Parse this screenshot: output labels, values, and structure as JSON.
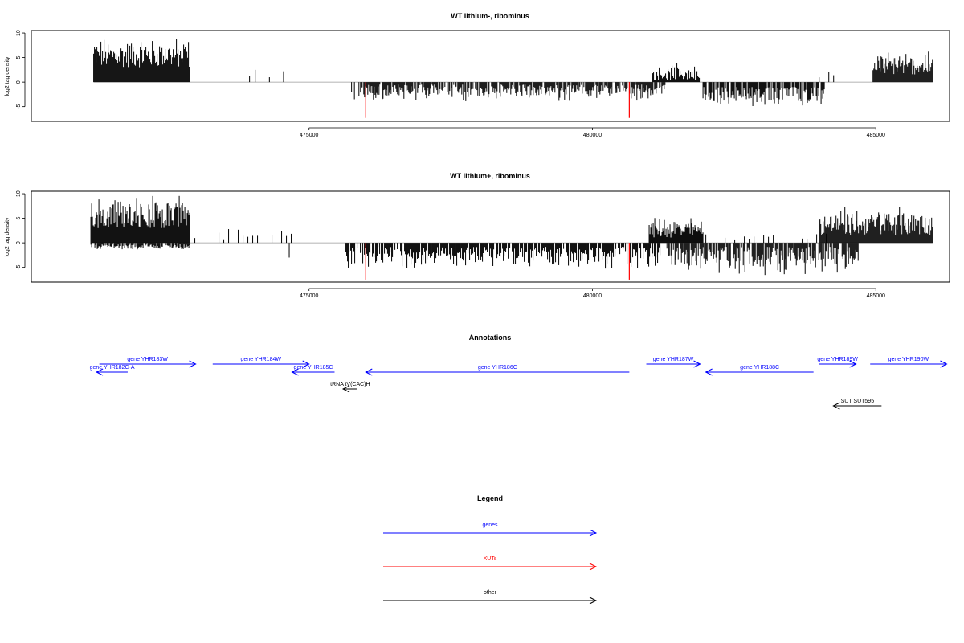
{
  "colors": {
    "gene": "#0000ff",
    "xut": "#ff0000",
    "other": "#000000",
    "bars": "#000000",
    "highlight": "#ff0000",
    "baseline": "#999999"
  },
  "chart_data": [
    {
      "type": "bar",
      "title": "WT lithium-, ribominus",
      "ylabel": "log2 tag density",
      "xlabel": "",
      "xlim": [
        470100,
        486300
      ],
      "ylim": [
        -8,
        10.5
      ],
      "xticks": [
        475000,
        480000,
        485000
      ],
      "xtick_labels": [
        "475000",
        "480000",
        "485000"
      ],
      "yticks": [
        -5,
        0,
        5,
        10
      ],
      "ytick_labels": [
        "-5",
        "0",
        "5",
        "10"
      ],
      "grid": false,
      "series": [
        {
          "values": [
            [
              471200,
              472900,
              "dense",
              3,
              9.5,
              0,
              0
            ],
            [
              473950,
              473950,
              "bar",
              1.2
            ],
            [
              474050,
              474050,
              "bar",
              2.5
            ],
            [
              474300,
              474300,
              "bar",
              1.0
            ],
            [
              474550,
              474550,
              "bar",
              2.2
            ],
            [
              475750,
              475750,
              "bar",
              -2.0
            ],
            [
              475800,
              475800,
              "bar",
              -3.5
            ],
            [
              475880,
              481300,
              "dense",
              0,
              0,
              -0.5,
              -4.0
            ],
            [
              481050,
              481900,
              "dense",
              0.3,
              4.0,
              0,
              0
            ],
            [
              481950,
              484100,
              "dense",
              0,
              0,
              -1.0,
              -5.3
            ],
            [
              484000,
              484600,
              "sparse",
              0.5,
              3.0,
              0,
              0
            ],
            [
              484950,
              486000,
              "dense",
              1.5,
              6.5,
              0,
              0
            ]
          ]
        },
        {
          "name": "highlight",
          "values": [
            [
              476000,
              -7.3
            ],
            [
              480650,
              -7.3
            ]
          ]
        }
      ]
    },
    {
      "type": "bar",
      "title": "WT lithium+, ribominus",
      "ylabel": "log2 tag density",
      "xlabel": "",
      "xlim": [
        470100,
        486300
      ],
      "ylim": [
        -8,
        10.5
      ],
      "xticks": [
        475000,
        480000,
        485000
      ],
      "xtick_labels": [
        "475000",
        "480000",
        "485000"
      ],
      "yticks": [
        -5,
        0,
        5,
        10
      ],
      "ytick_labels": [
        "-5",
        "0",
        "5",
        "10"
      ],
      "grid": false,
      "series": [
        {
          "values": [
            [
              471150,
              472900,
              "dense",
              3,
              10.0,
              -0.3,
              -1.5
            ],
            [
              472900,
              474700,
              "sparse",
              0.5,
              3.3,
              0,
              0
            ],
            [
              474650,
              474700,
              "bar",
              -3.0
            ],
            [
              475650,
              481200,
              "dense",
              0,
              0,
              -0.8,
              -5.5
            ],
            [
              481000,
              481950,
              "dense",
              1.0,
              5.5,
              0,
              0
            ],
            [
              481300,
              484700,
              "dense",
              0,
              0,
              -0.8,
              -7.2
            ],
            [
              482000,
              484300,
              "sparse",
              0.5,
              2.5,
              0,
              0
            ],
            [
              484000,
              486000,
              "dense",
              1.5,
              7.8,
              0,
              0
            ]
          ]
        },
        {
          "name": "highlight",
          "values": [
            [
              476000,
              -7.5
            ],
            [
              480650,
              -7.5
            ]
          ]
        }
      ]
    }
  ],
  "annotations": {
    "title": "Annotations",
    "features": [
      {
        "label": "gene YHR183W",
        "kind": "gene",
        "start": 471300,
        "end": 473000
      },
      {
        "label": "gene YHR182C-A",
        "kind": "gene",
        "start": 471800,
        "end": 471250
      },
      {
        "label": "gene YHR184W",
        "kind": "gene",
        "start": 473300,
        "end": 475000
      },
      {
        "label": "gene YHR185C",
        "kind": "gene",
        "start": 475450,
        "end": 474700
      },
      {
        "label": "gene YHR186C",
        "kind": "gene",
        "start": 480650,
        "end": 476000
      },
      {
        "label": "tRNA tV(CAC)H",
        "kind": "other",
        "start": 475850,
        "end": 475600
      },
      {
        "label": "gene YHR187W",
        "kind": "gene",
        "start": 480950,
        "end": 481900
      },
      {
        "label": "gene YHR188C",
        "kind": "gene",
        "start": 483900,
        "end": 482000
      },
      {
        "label": "gene YHR189W",
        "kind": "gene",
        "start": 484000,
        "end": 484650
      },
      {
        "label": "gene YHR190W",
        "kind": "gene",
        "start": 484900,
        "end": 486250
      },
      {
        "label": "SUT SUT595",
        "kind": "other",
        "start": 485100,
        "end": 484250
      }
    ]
  },
  "legend": {
    "title": "Legend",
    "items": [
      {
        "label": "genes",
        "kind": "gene"
      },
      {
        "label": "XUTs",
        "kind": "xut"
      },
      {
        "label": "other",
        "kind": "other"
      }
    ]
  }
}
